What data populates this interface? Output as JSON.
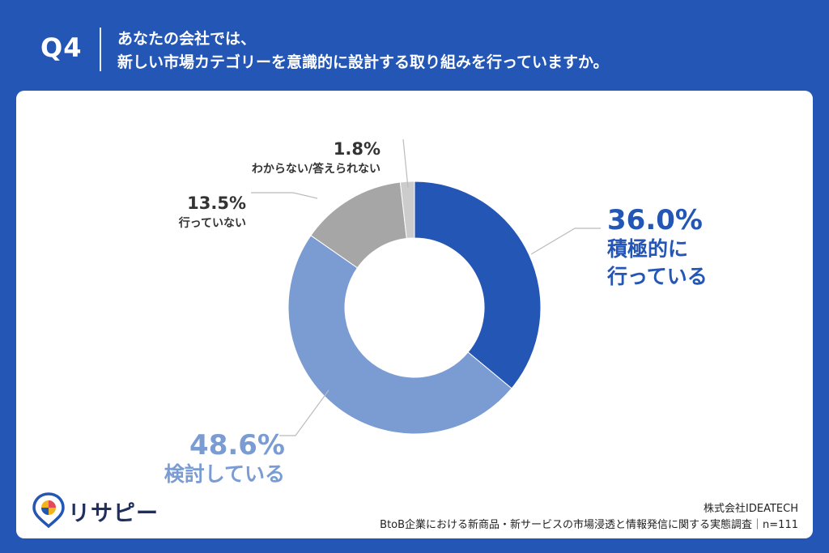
{
  "header": {
    "q_label": "Q4",
    "question_line1": "あなたの会社では、",
    "question_line2": "新しい市場カテゴリーを意識的に設計する取り組みを行っていますか。"
  },
  "chart_data": {
    "type": "pie",
    "donut": true,
    "slices": [
      {
        "label_lines": [
          "積極的に",
          "行っている"
        ],
        "value": 36.0,
        "value_label": "36.0%",
        "color": "#2356b5"
      },
      {
        "label_lines": [
          "検討している"
        ],
        "value": 48.6,
        "value_label": "48.6%",
        "color": "#7a9cd3"
      },
      {
        "label_lines": [
          "行っていない"
        ],
        "value": 13.5,
        "value_label": "13.5%",
        "color": "#a6a6a6"
      },
      {
        "label_lines": [
          "わからない/答えられない"
        ],
        "value": 1.8,
        "value_label": "1.8%",
        "color": "#cccccc"
      }
    ]
  },
  "footer": {
    "logo_text": "リサピー",
    "company": "株式会社IDEATECH",
    "survey": "BtoB企業における新商品・新サービスの市場浸透と情報発信に関する実態調査｜n=111"
  },
  "colors": {
    "background": "#2356b5",
    "card": "#ffffff",
    "leader_line": "#bbbbbb"
  }
}
